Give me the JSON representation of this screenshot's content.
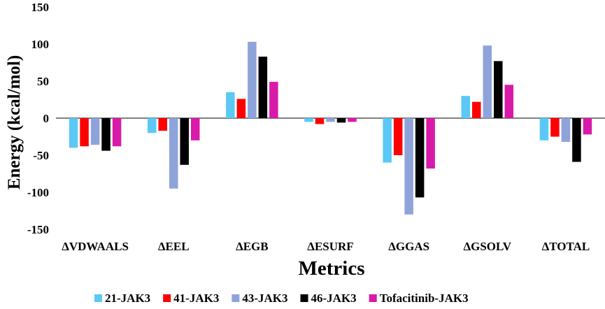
{
  "chart_data": {
    "type": "bar",
    "title": "",
    "xlabel": "Metrics",
    "ylabel": "Energy (kcal/mol)",
    "ylim": [
      -150,
      150
    ],
    "yticks": [
      150,
      100,
      50,
      0,
      -50,
      -100,
      -150
    ],
    "grid": false,
    "legend_position": "bottom",
    "categories": [
      "ΔVDWAALS",
      "ΔEEL",
      "ΔEGB",
      "ΔESURF",
      "ΔGGAS",
      "ΔGSOLV",
      "ΔTOTAL"
    ],
    "series": [
      {
        "name": "21-JAK3",
        "color": "#5bc8f5",
        "values": [
          -40,
          -20,
          35,
          -5,
          -60,
          30,
          -30
        ]
      },
      {
        "name": "41-JAK3",
        "color": "#ff0000",
        "values": [
          -38,
          -17,
          26,
          -8,
          -50,
          22,
          -25
        ]
      },
      {
        "name": "43-JAK3",
        "color": "#8fa3db",
        "values": [
          -36,
          -95,
          103,
          -5,
          -130,
          98,
          -32
        ]
      },
      {
        "name": "46-JAK3",
        "color": "#000000",
        "values": [
          -44,
          -63,
          83,
          -6,
          -107,
          77,
          -59
        ]
      },
      {
        "name": "Tofacitinib-JAK3",
        "color": "#d91aa8",
        "values": [
          -38,
          -30,
          49,
          -5,
          -68,
          45,
          -22
        ]
      }
    ]
  }
}
